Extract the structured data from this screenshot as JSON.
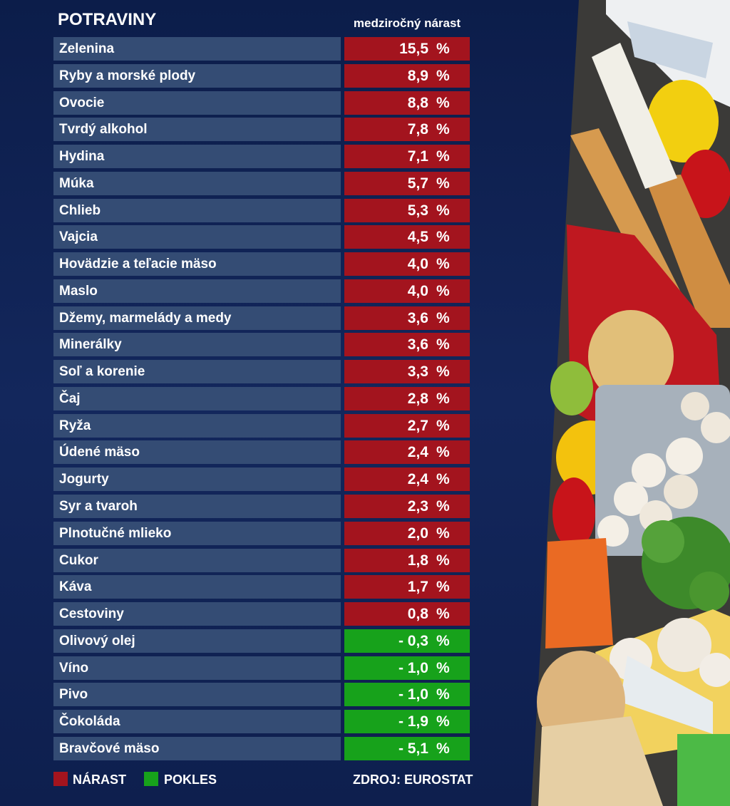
{
  "title": "POTRAVINY",
  "column_header": "medziročný nárast",
  "colors": {
    "increase": "#a3141e",
    "decrease": "#17a21b",
    "label_bg": "#344c74",
    "background": "#0f2050"
  },
  "legend": [
    {
      "label": "NÁRAST",
      "color": "#a3141e"
    },
    {
      "label": "POKLES",
      "color": "#17a21b"
    }
  ],
  "source": "ZDROJ: EUROSTAT",
  "chart_data": {
    "type": "table",
    "title": "POTRAVINY",
    "value_header": "medziročný nárast",
    "unit": "%",
    "categories": [
      "Zelenina",
      "Ryby a morské plody",
      "Ovocie",
      "Tvrdý alkohol",
      "Hydina",
      "Múka",
      "Chlieb",
      "Vajcia",
      "Hovädzie a teľacie mäso",
      "Maslo",
      "Džemy, marmelády a medy",
      "Minerálky",
      "Soľ a korenie",
      "Čaj",
      "Ryža",
      "Údené mäso",
      "Jogurty",
      "Syr a tvaroh",
      "Plnotučné mlieko",
      "Cukor",
      "Káva",
      "Cestoviny",
      "Olivový olej",
      "Víno",
      "Pivo",
      "Čokoláda",
      "Bravčové mäso"
    ],
    "values": [
      15.5,
      8.9,
      8.8,
      7.8,
      7.1,
      5.7,
      5.3,
      4.5,
      4.0,
      4.0,
      3.6,
      3.6,
      3.3,
      2.8,
      2.7,
      2.4,
      2.4,
      2.3,
      2.0,
      1.8,
      1.7,
      0.8,
      -0.3,
      -1.0,
      -1.0,
      -1.9,
      -5.1
    ],
    "value_labels": [
      "15,5",
      "8,9",
      "8,8",
      "7,8",
      "7,1",
      "5,7",
      "5,3",
      "4,5",
      "4,0",
      "4,0",
      "3,6",
      "3,6",
      "3,3",
      "2,8",
      "2,7",
      "2,4",
      "2,4",
      "2,3",
      "2,0",
      "1,8",
      "1,7",
      "0,8",
      "- 0,3",
      "- 1,0",
      "- 1,0",
      "- 1,9",
      "- 5,1"
    ]
  },
  "photo_icon": "groceries-photo"
}
